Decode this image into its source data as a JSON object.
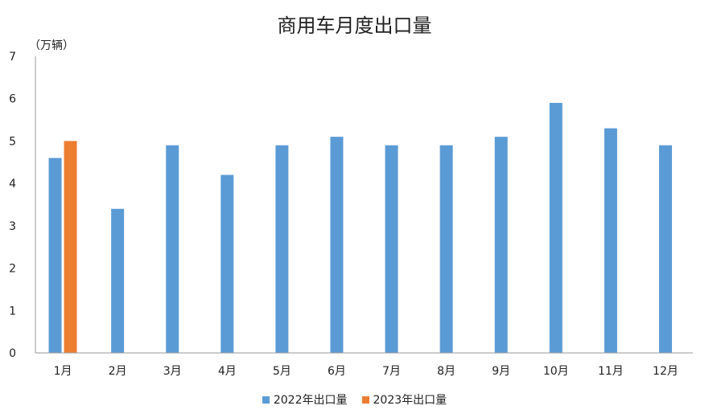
{
  "chart_data": {
    "type": "bar",
    "title": "商用车月度出口量",
    "unit_label": "（万辆）",
    "categories": [
      "1月",
      "2月",
      "3月",
      "4月",
      "5月",
      "6月",
      "7月",
      "8月",
      "9月",
      "10月",
      "11月",
      "12月"
    ],
    "series": [
      {
        "name": "2022年出口量",
        "color": "#5B9BD5",
        "values": [
          4.6,
          3.4,
          4.9,
          4.2,
          4.9,
          5.1,
          4.9,
          4.9,
          5.1,
          5.9,
          5.3,
          4.9
        ]
      },
      {
        "name": "2023年出口量",
        "color": "#ED7D31",
        "values": [
          5.0,
          null,
          null,
          null,
          null,
          null,
          null,
          null,
          null,
          null,
          null,
          null
        ]
      }
    ],
    "ylim": [
      0,
      7
    ],
    "yticks": [
      0,
      1,
      2,
      3,
      4,
      5,
      6,
      7
    ],
    "grid": false,
    "legend_position": "bottom"
  }
}
